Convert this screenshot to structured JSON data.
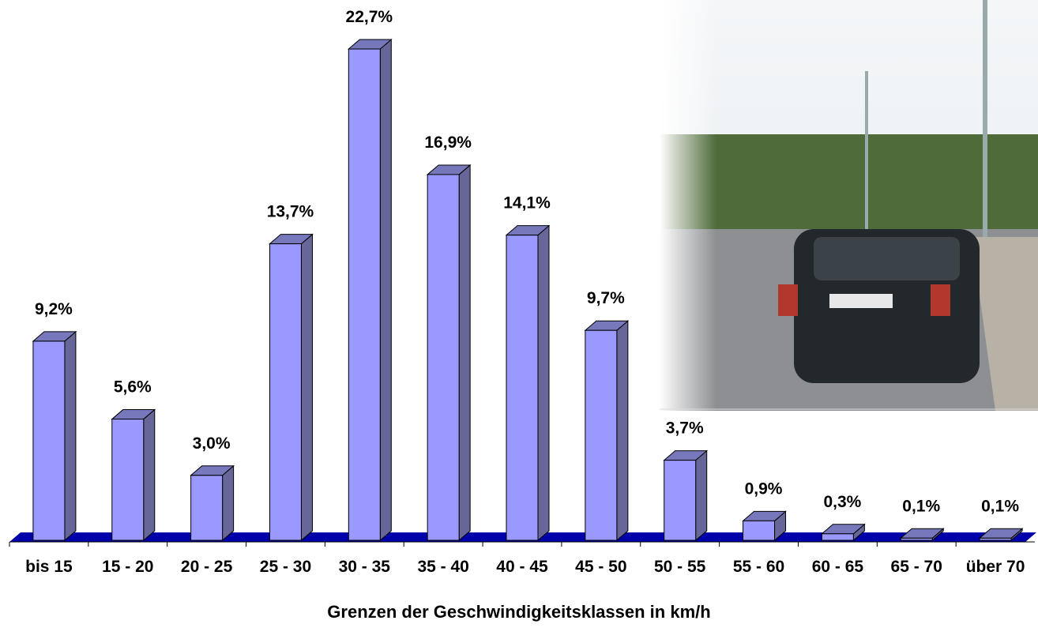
{
  "chart_data": {
    "type": "bar3d",
    "x_label": "Grenzen der Geschwindigkeitsklassen in km/h",
    "categories": [
      "bis 15",
      "15 - 20",
      "20 - 25",
      "25 - 30",
      "30 - 35",
      "35 - 40",
      "40 - 45",
      "45 - 50",
      "50 - 55",
      "55 - 60",
      "60 - 65",
      "65 - 70",
      "über 70"
    ],
    "values": [
      9.2,
      5.6,
      3.0,
      13.7,
      22.7,
      16.9,
      14.1,
      9.7,
      3.7,
      0.9,
      0.3,
      0.1,
      0.1
    ],
    "value_labels": [
      "9,2%",
      "5,6%",
      "3,0%",
      "13,7%",
      "22,7%",
      "16,9%",
      "14,1%",
      "9,7%",
      "3,7%",
      "0,9%",
      "0,3%",
      "0,1%",
      "0,1%"
    ],
    "color": "#9999ff"
  }
}
